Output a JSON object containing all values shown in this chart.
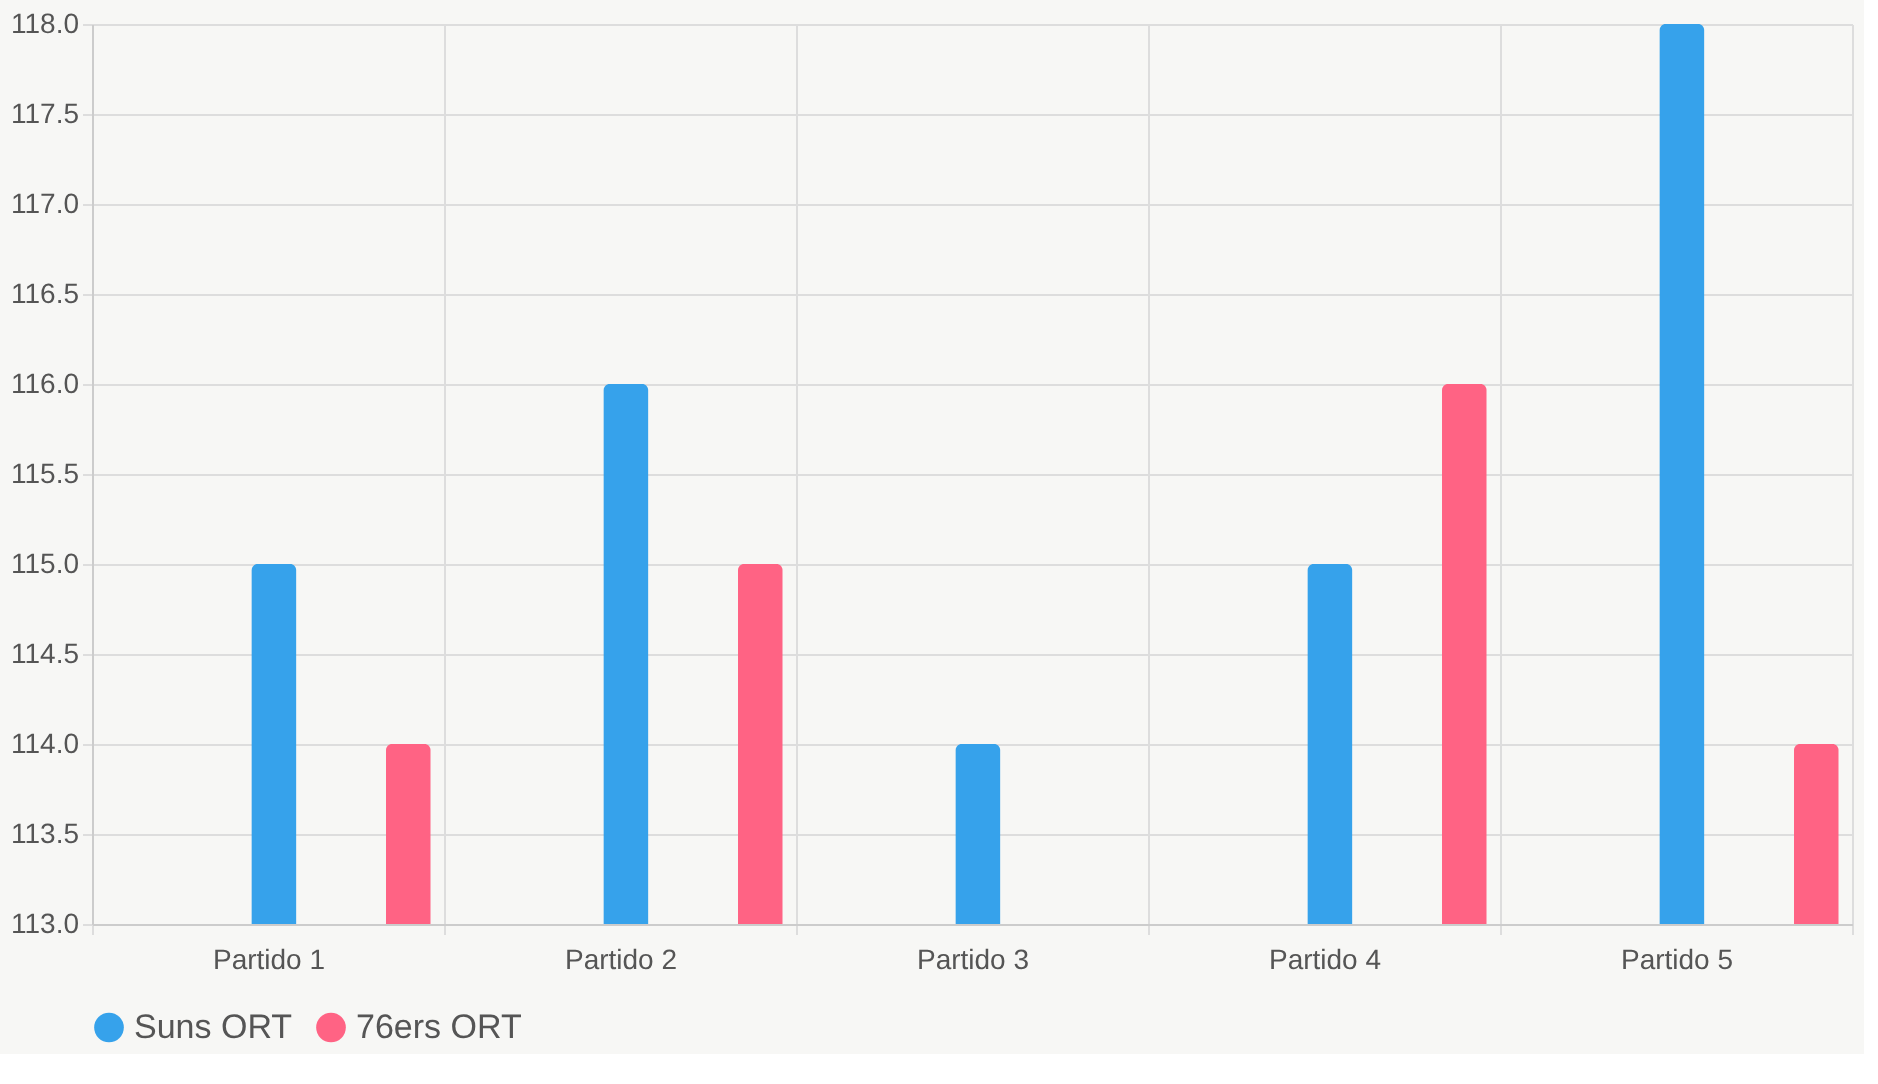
{
  "chart_data": {
    "type": "bar",
    "categories": [
      "Partido 1",
      "Partido 2",
      "Partido 3",
      "Partido 4",
      "Partido 5"
    ],
    "series": [
      {
        "name": "Suns ORT",
        "color": "#36a2eb",
        "values": [
          115,
          116,
          114,
          115,
          118
        ]
      },
      {
        "name": "76ers ORT",
        "color": "#ff6384",
        "values": [
          114,
          115,
          113,
          116,
          114
        ]
      }
    ],
    "ylim": [
      113,
      118
    ],
    "yticks": [
      {
        "value": 113,
        "label": "113.0"
      },
      {
        "value": 113.5,
        "label": "113.5"
      },
      {
        "value": 114,
        "label": "114.0"
      },
      {
        "value": 114.5,
        "label": "114.5"
      },
      {
        "value": 115,
        "label": "115.0"
      },
      {
        "value": 115.5,
        "label": "115.5"
      },
      {
        "value": 116,
        "label": "116.0"
      },
      {
        "value": 116.5,
        "label": "116.5"
      },
      {
        "value": 117,
        "label": "117.0"
      },
      {
        "value": 117.5,
        "label": "117.5"
      },
      {
        "value": 118,
        "label": "118.0"
      }
    ],
    "grid": true,
    "legend": "bottom"
  }
}
